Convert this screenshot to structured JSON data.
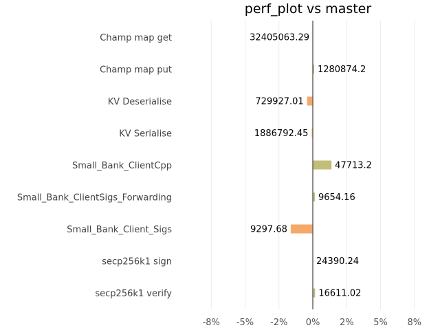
{
  "chart_data": {
    "type": "bar",
    "orientation": "horizontal",
    "title": "perf_plot vs master",
    "xlabel": "",
    "ylabel": "",
    "xlim": [
      -0.1,
      0.1
    ],
    "xticks": [
      -0.075,
      -0.05,
      -0.025,
      0,
      0.025,
      0.05,
      0.075
    ],
    "xtick_labels": [
      "-8%",
      "-5%",
      "-2%",
      "0%",
      "2%",
      "5%",
      "8%"
    ],
    "grid": "vertical",
    "categories": [
      "Champ map get",
      "Champ map put",
      "KV Deserialise",
      "KV Serialise",
      "Small_Bank_ClientCpp",
      "Small_Bank_ClientSigs_Forwarding",
      "Small_Bank_Client_Sigs",
      "secp256k1 sign",
      "secp256k1 verify"
    ],
    "values": [
      0.0,
      0.001,
      -0.0042,
      -0.0008,
      0.0138,
      0.0015,
      -0.0163,
      0.0,
      0.0017
    ],
    "labels": [
      "32405063.29",
      "1280874.2",
      "729927.01",
      "1886792.45",
      "47713.2",
      "9654.16",
      "9297.68",
      "24390.24",
      "16611.02"
    ],
    "colors": {
      "positive": "#c3bd7a",
      "negative": "#f4a96a",
      "zero_line": "#666666",
      "grid": "#ececec"
    }
  }
}
